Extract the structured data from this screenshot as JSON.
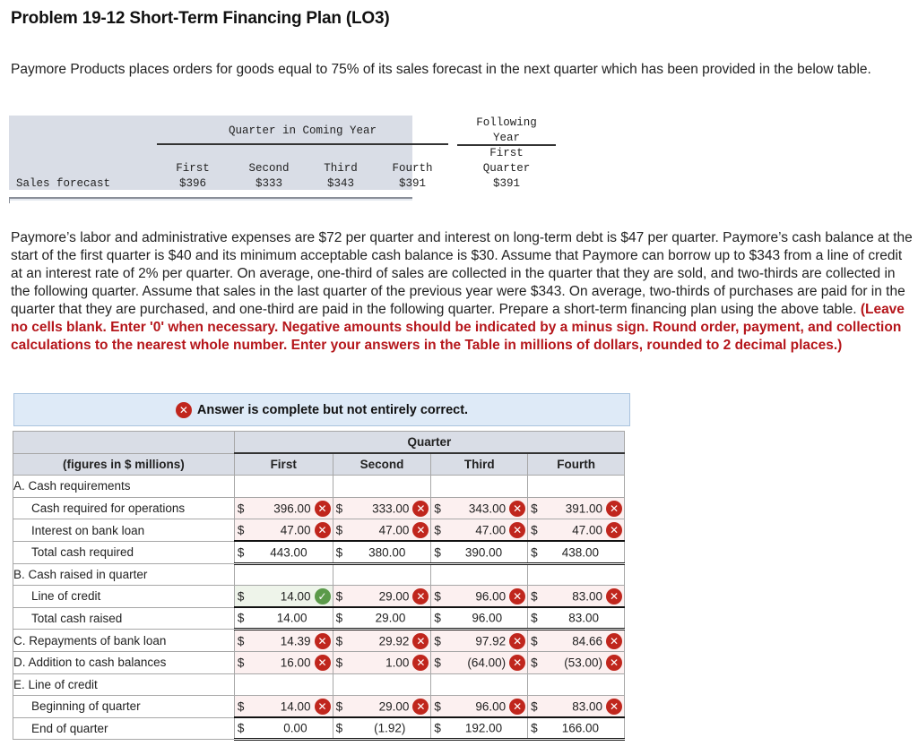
{
  "title": "Problem 19-12 Short-Term Financing Plan (LO3)",
  "intro": "Paymore Products places orders for goods equal to 75% of its sales forecast in the next quarter which has been provided in the below table.",
  "sales_table": {
    "group_header": "Quarter in Coming Year",
    "following_header_line1": "Following",
    "following_header_line2": "Year",
    "columns": [
      "First",
      "Second",
      "Third",
      "Fourth"
    ],
    "following_col_line1": "First",
    "following_col_line2": "Quarter",
    "row_label": "Sales forecast",
    "values": [
      "$396",
      "$333",
      "$343",
      "$391"
    ],
    "following_value": "$391"
  },
  "paragraph": {
    "text": "Paymore’s labor and administrative expenses are $72 per quarter and interest on long-term debt is $47 per quarter. Paymore’s cash balance at the start of the first quarter is $40 and its minimum acceptable cash balance is $30. Assume that Paymore can borrow up to $343 from a line of credit at an interest rate of 2% per quarter. On average, one-third of sales are collected in the quarter that they are sold, and two-thirds are collected in the following quarter. Assume that sales in the last quarter of the previous year were $343. On average, two-thirds of purchases are paid for in the quarter that they are purchased, and one-third are paid in the following quarter. Prepare a short-term financing plan using the above table. ",
    "instructions": "(Leave no cells blank. Enter '0' when necessary. Negative amounts should be indicated by a minus sign. Round order, payment, and collection calculations to the nearest whole number. Enter your answers in the Table in millions of dollars, rounded to 2 decimal places.)"
  },
  "banner": {
    "icon": "x-circle-icon",
    "text": "Answer is complete but not entirely correct."
  },
  "answer_table": {
    "group_header": "Quarter",
    "label_header": "(figures in $ millions)",
    "columns": [
      "First",
      "Second",
      "Third",
      "Fourth"
    ],
    "currency": "$",
    "sections": {
      "a": "A. Cash requirements",
      "b": "B. Cash raised in quarter",
      "e": "E. Line of credit"
    },
    "rows": {
      "cash_ops": {
        "label": "Cash required for operations",
        "values": [
          "396.00",
          "333.00",
          "343.00",
          "391.00"
        ],
        "status": [
          "wrong",
          "wrong",
          "wrong",
          "wrong"
        ]
      },
      "interest": {
        "label": "Interest on bank loan",
        "values": [
          "47.00",
          "47.00",
          "47.00",
          "47.00"
        ],
        "status": [
          "wrong",
          "wrong",
          "wrong",
          "wrong"
        ]
      },
      "total_required": {
        "label": "Total cash required",
        "values": [
          "443.00",
          "380.00",
          "390.00",
          "438.00"
        ]
      },
      "line_credit": {
        "label": "Line of credit",
        "values": [
          "14.00",
          "29.00",
          "96.00",
          "83.00"
        ],
        "status": [
          "correct",
          "wrong",
          "wrong",
          "wrong"
        ]
      },
      "total_raised": {
        "label": "Total cash raised",
        "values": [
          "14.00",
          "29.00",
          "96.00",
          "83.00"
        ]
      },
      "repayments": {
        "label": "C. Repayments of bank loan",
        "values": [
          "14.39",
          "29.92",
          "97.92",
          "84.66"
        ],
        "status": [
          "wrong",
          "wrong",
          "wrong",
          "wrong"
        ]
      },
      "addition": {
        "label": "D. Addition to cash balances",
        "values": [
          "16.00",
          "1.00",
          "(64.00)",
          "(53.00)"
        ],
        "status": [
          "wrong",
          "wrong",
          "wrong",
          "wrong"
        ]
      },
      "beginning": {
        "label": "Beginning of quarter",
        "values": [
          "14.00",
          "29.00",
          "96.00",
          "83.00"
        ],
        "status": [
          "wrong",
          "wrong",
          "wrong",
          "wrong"
        ]
      },
      "end": {
        "label": "End of quarter",
        "values": [
          "0.00",
          "(1.92)",
          "192.00",
          "166.00"
        ]
      }
    },
    "icons": {
      "wrong": "✕",
      "correct": "✓"
    },
    "colors": {
      "wrong_icon": "#c0261d",
      "correct_icon": "#5b9a4a",
      "wrong_cell": "#fcf0f0",
      "correct_cell": "#eef4ea",
      "header_bg": "#d9dde6",
      "instruction_red": "#b5161b",
      "banner_bg": "#deeaf7"
    }
  }
}
